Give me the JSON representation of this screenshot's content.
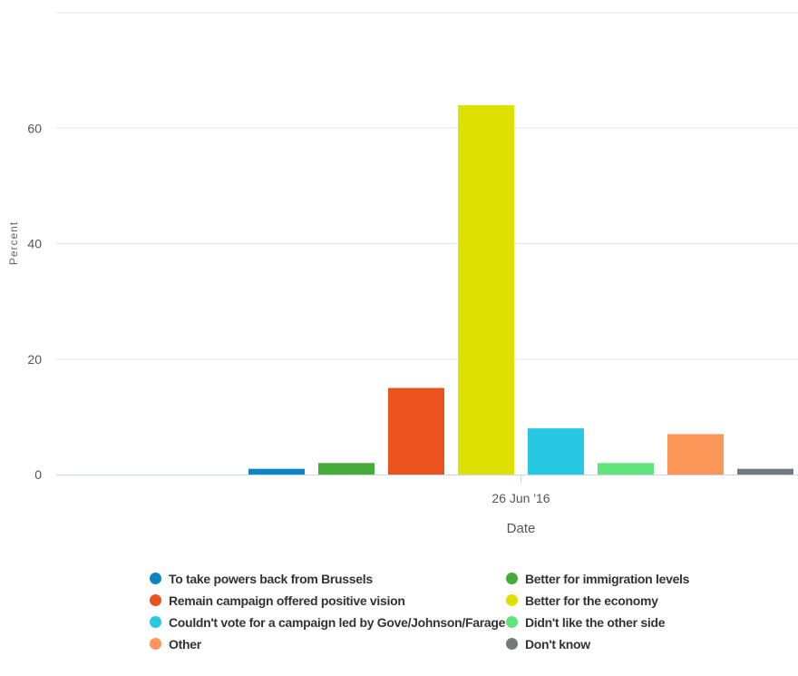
{
  "chart_data": {
    "type": "bar",
    "categories": [
      "26 Jun '16"
    ],
    "series": [
      {
        "name": "To take powers back from Brussels",
        "values": [
          1
        ],
        "color": "#0b84c6"
      },
      {
        "name": "Better for immigration levels",
        "values": [
          2
        ],
        "color": "#47ab3a"
      },
      {
        "name": "Remain campaign offered positive vision",
        "values": [
          15
        ],
        "color": "#ea531e"
      },
      {
        "name": "Better for the economy",
        "values": [
          64
        ],
        "color": "#dde000"
      },
      {
        "name": "Couldn't vote for a campaign led by Gove/Johnson/Farage",
        "values": [
          8
        ],
        "color": "#27c8e4"
      },
      {
        "name": "Didn't like the other side",
        "values": [
          2
        ],
        "color": "#5fe57c"
      },
      {
        "name": "Other",
        "values": [
          7
        ],
        "color": "#fb9658"
      },
      {
        "name": "Don't know",
        "values": [
          1
        ],
        "color": "#737a7e"
      }
    ],
    "xlabel": "Date",
    "ylabel": "Percent",
    "ylim": [
      0,
      80
    ],
    "yticks": [
      0,
      20,
      40,
      60
    ],
    "grid": true,
    "legend_position": "bottom"
  }
}
